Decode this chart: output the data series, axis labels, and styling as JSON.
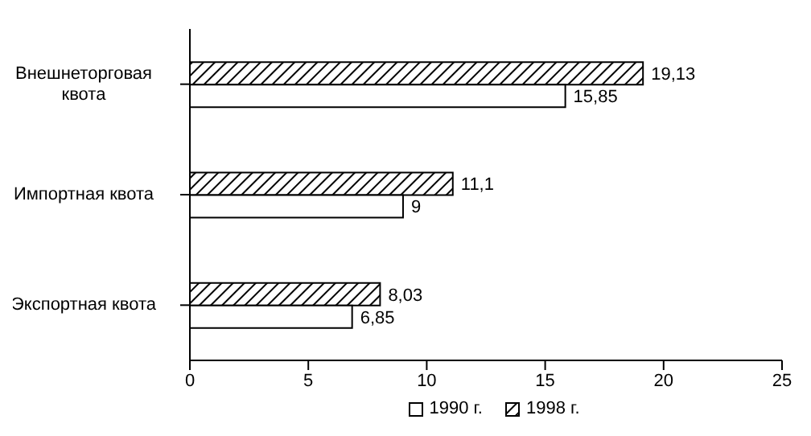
{
  "chart_data": {
    "type": "bar",
    "orientation": "horizontal",
    "categories": [
      "Внешнеторговая квота",
      "Импортная квота",
      "Экспортная квота"
    ],
    "series": [
      {
        "name": "1990 г.",
        "color": "#ffffff",
        "values": [
          15.85,
          9,
          6.85
        ],
        "value_labels": [
          "15,85",
          "9",
          "6,85"
        ]
      },
      {
        "name": "1998 г.",
        "color": "#000000",
        "values": [
          19.13,
          11.1,
          8.03
        ],
        "value_labels": [
          "19,13",
          "11,1",
          "8,03"
        ]
      }
    ],
    "xlim": [
      0,
      25
    ],
    "xticks": [
      0,
      5,
      10,
      15,
      20,
      25
    ],
    "grid": false,
    "legend": "bottom"
  }
}
